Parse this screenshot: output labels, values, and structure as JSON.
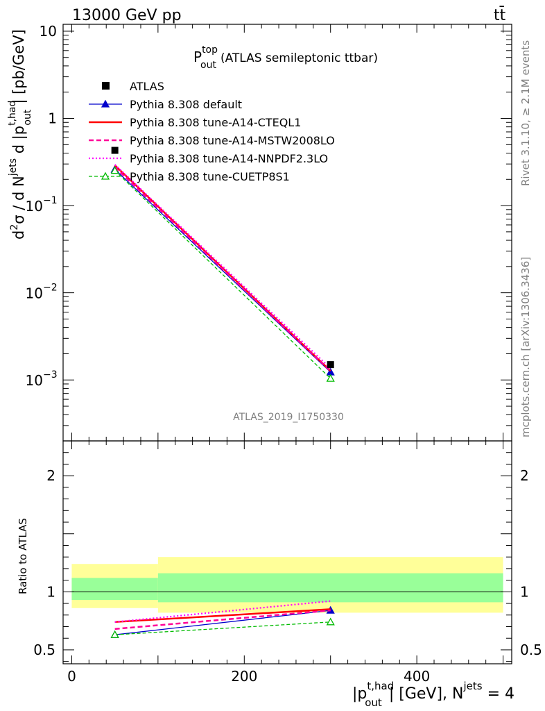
{
  "header": {
    "energy_label": "13000 GeV pp",
    "process_label": "tt̄"
  },
  "plot_title": {
    "main": "P",
    "sup": "top",
    "sub": "out",
    "rest": "(ATLAS semileptonic ttbar)"
  },
  "analysis_id": "ATLAS_2019_I1750330",
  "side_text": {
    "rivet": "Rivet 3.1.10, ≥ 2.1M events",
    "mcplots": "mcplots.cern.ch [arXiv:1306.3436]"
  },
  "axes": {
    "main_ylabel": {
      "pre": "d",
      "sigma": "σ / d N",
      "jets_sup": "jets",
      "mid": " d |p",
      "p_sup": "t,had",
      "p_sub": "out",
      "post": "| [pb/GeV]"
    },
    "ratio_ylabel": "Ratio to ATLAS",
    "xlabel": {
      "pre": "|p",
      "p_sup": "t,had",
      "p_sub": "out",
      "mid": "| [GeV], N",
      "n_sup": "jets",
      "post": " = 4"
    }
  },
  "colors": {
    "data": "#000000",
    "default": "#0000cc",
    "cteql1": "#ff0000",
    "mstw": "#ff0099",
    "nnpdf": "#ff00ff",
    "cuetp8s1": "#00bb00",
    "band_inner": "#99ff99",
    "band_outer": "#ffff99"
  },
  "chart_data": {
    "type": "line",
    "x_range": [
      -10,
      510
    ],
    "main_ylim": [
      0.0002,
      12
    ],
    "main_yscale": "log",
    "ratio_ylim": [
      0.38,
      2.3
    ],
    "x_ticks": [
      {
        "value": 0,
        "label": "0"
      },
      {
        "value": 200,
        "label": "200"
      },
      {
        "value": 400,
        "label": "400"
      }
    ],
    "main_y_ticks": [
      {
        "value": 10,
        "label": "10"
      },
      {
        "value": 1,
        "label": "1"
      },
      {
        "value": 0.1,
        "base": "10",
        "exp": "−1"
      },
      {
        "value": 0.01,
        "base": "10",
        "exp": "−2"
      },
      {
        "value": 0.001,
        "base": "10",
        "exp": "−3"
      }
    ],
    "ratio_y_ticks": [
      {
        "value": 0.5,
        "label": "0.5"
      },
      {
        "value": 1,
        "label": "1"
      },
      {
        "value": 2,
        "label": "2"
      }
    ],
    "bins": [
      {
        "lo": 0,
        "hi": 100,
        "center": 50
      },
      {
        "lo": 100,
        "hi": 500,
        "center": 300
      }
    ],
    "data_points": [
      {
        "x": 50,
        "y": 0.43
      },
      {
        "x": 300,
        "y": 0.0015
      }
    ],
    "uncertainty_bands": {
      "inner": [
        [
          0.93,
          1.12
        ],
        [
          0.91,
          1.16
        ]
      ],
      "outer": [
        [
          0.86,
          1.24
        ],
        [
          0.82,
          1.3
        ]
      ]
    },
    "legend_position": "top-left",
    "series": [
      {
        "name": "ATLAS",
        "key": "data",
        "style": "data"
      },
      {
        "name": "Pythia 8.308 default",
        "key": "default",
        "dash": "",
        "width": 1.3,
        "marker": "triangle-filled",
        "values": [
          0.26,
          0.00123
        ],
        "ratio": [
          0.63,
          0.84
        ]
      },
      {
        "name": "Pythia 8.308 tune-A14-CTEQL1",
        "key": "cteql1",
        "dash": "",
        "width": 2.5,
        "marker": "none",
        "values": [
          0.29,
          0.00127
        ],
        "ratio": [
          0.74,
          0.85
        ]
      },
      {
        "name": "Pythia 8.308 tune-A14-MSTW2008LO",
        "key": "mstw",
        "dash": "7,4",
        "width": 2.5,
        "marker": "none",
        "values": [
          0.275,
          0.00126
        ],
        "ratio": [
          0.68,
          0.84
        ]
      },
      {
        "name": "Pythia 8.308 tune-A14-NNPDF2.3LO",
        "key": "nnpdf",
        "dash": "2,3",
        "width": 2.2,
        "marker": "none",
        "values": [
          0.295,
          0.00136
        ],
        "ratio": [
          0.74,
          0.92
        ]
      },
      {
        "name": "Pythia 8.308 tune-CUETP8S1",
        "key": "cuetp8s1",
        "dash": "5,3",
        "width": 1.3,
        "marker": "triangle-open",
        "values": [
          0.252,
          0.00104
        ],
        "ratio": [
          0.63,
          0.74
        ]
      }
    ]
  }
}
